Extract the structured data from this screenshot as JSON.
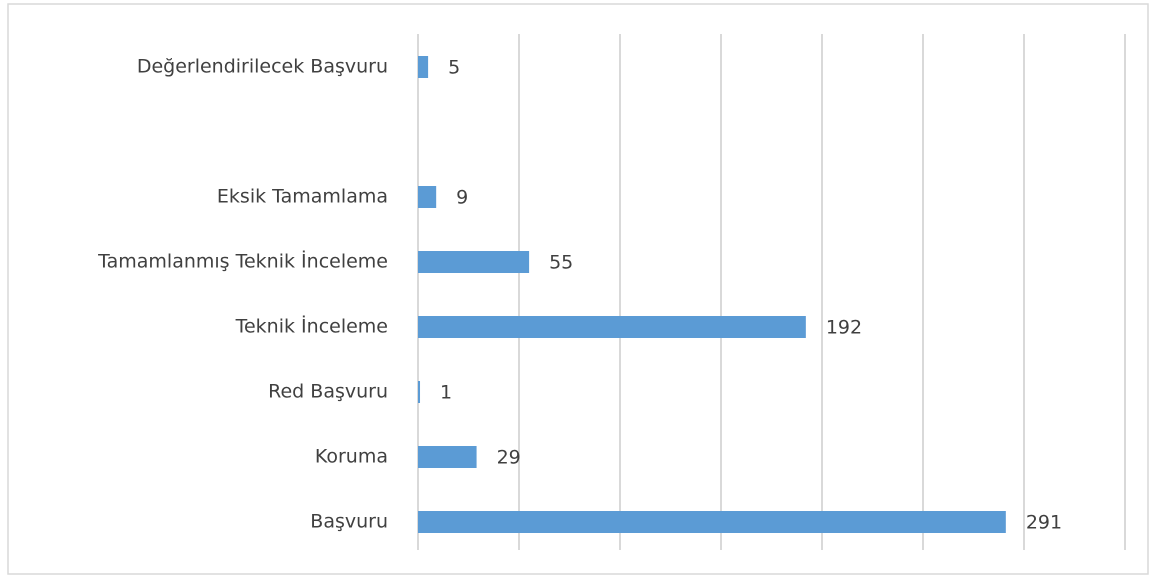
{
  "chart_data": {
    "type": "hbar",
    "categories": [
      "Değerlendirilecek Başvuru",
      null,
      "Eksik Tamamlama",
      "Tamamlanmış Teknik İnceleme",
      "Teknik İnceleme",
      "Red Başvuru",
      "Koruma",
      "Başvuru"
    ],
    "values": [
      5,
      null,
      9,
      55,
      192,
      1,
      29,
      291
    ],
    "color": "#5b9bd5",
    "xlim": [
      0,
      350
    ],
    "xticks": [
      0,
      50,
      100,
      150,
      200,
      250,
      300,
      350
    ],
    "grid": true
  }
}
